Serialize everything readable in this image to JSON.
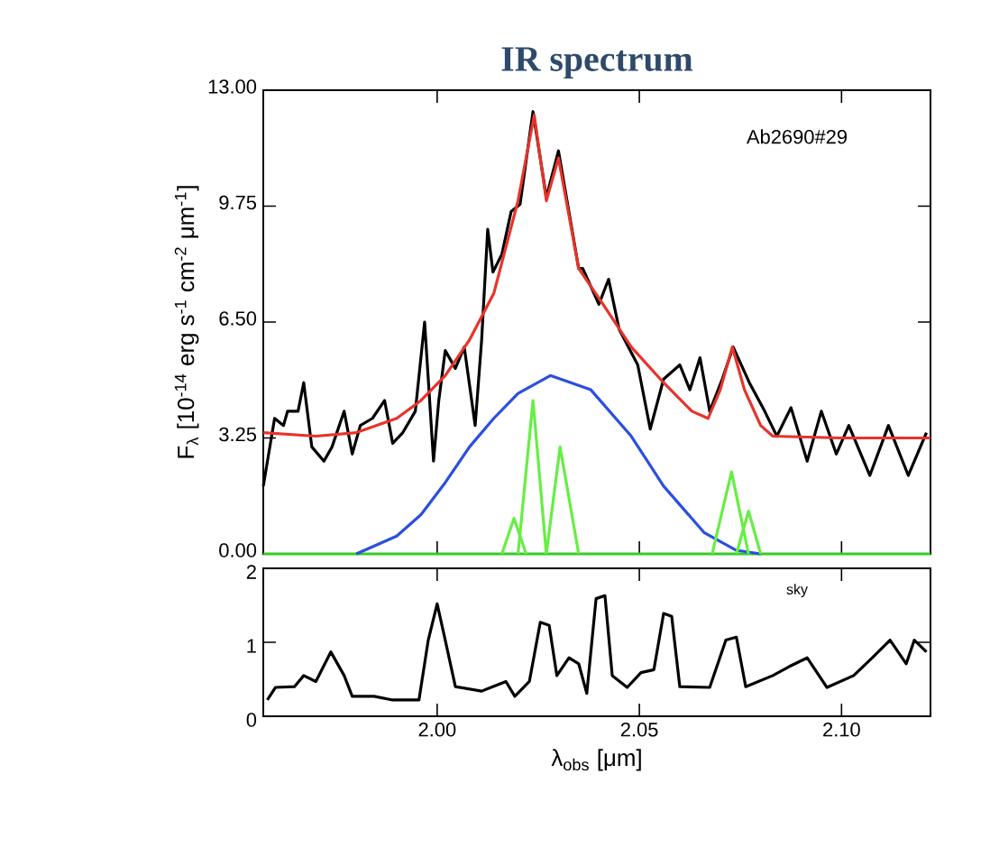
{
  "chart_data": [
    {
      "type": "line",
      "title": "IR spectrum",
      "ylabel": "F$_{λ}$ [10$^{-14}$ erg s$^{-1}$ cm$^{-2}$ μm$^{-1}$]",
      "xlim": [
        1.957,
        2.122
      ],
      "ylim": [
        0,
        13
      ],
      "yticks": [
        {
          "value": 0,
          "label": "0.00"
        },
        3.25,
        {
          "value": 6.5,
          "label": "6.50"
        },
        9.75,
        {
          "value": 13,
          "label": "13.00"
        }
      ],
      "tick_labels": "y",
      "annotations": [
        "Ab2690#29"
      ],
      "series": [
        {
          "color": "#33cc22",
          "x": [
            1.957,
            2.122
          ],
          "values": [
            0,
            0
          ]
        },
        {
          "color": "#000000",
          "x": [
            1.957,
            1.9598,
            1.962,
            1.963,
            1.9656,
            1.967,
            1.969,
            1.972,
            1.974,
            1.977,
            1.979,
            1.981,
            1.984,
            1.987,
            1.989,
            1.9915,
            1.9946,
            1.9969,
            1.9991,
            2.0004,
            2.002,
            2.0045,
            2.0067,
            2.0094,
            2.011,
            2.0125,
            2.0138,
            2.016,
            2.0183,
            2.0205,
            2.0237,
            2.027,
            2.03,
            2.035,
            2.036,
            2.04,
            2.0424,
            2.045,
            2.0496,
            2.0527,
            2.056,
            2.06,
            2.0625,
            2.065,
            2.0674,
            2.0705,
            2.0732,
            2.0772,
            2.081,
            2.084,
            2.0875,
            2.0915,
            2.095,
            2.0987,
            2.1018,
            2.107,
            2.1116,
            2.1165,
            2.121
          ],
          "values": [
            1.9,
            3.8,
            3.6,
            4.0,
            4.0,
            4.8,
            3.0,
            2.6,
            3.0,
            4.0,
            2.8,
            3.6,
            3.8,
            4.3,
            3.1,
            3.4,
            4.0,
            6.5,
            2.6,
            4.3,
            5.7,
            5.2,
            5.8,
            3.6,
            6.0,
            9.1,
            7.9,
            8.4,
            9.6,
            9.8,
            12.4,
            10.0,
            11.3,
            8.0,
            8.0,
            7.0,
            7.7,
            6.3,
            5.3,
            3.5,
            4.9,
            5.3,
            4.6,
            5.5,
            4.0,
            4.9,
            5.8,
            4.8,
            4.0,
            3.3,
            4.1,
            2.6,
            4.0,
            2.8,
            3.6,
            2.2,
            3.6,
            2.2,
            3.4
          ]
        },
        {
          "color": "#e8332a",
          "x": [
            1.957,
            1.97,
            1.98,
            1.99,
            1.996,
            2.002,
            2.008,
            2.014,
            2.02,
            2.024,
            2.027,
            2.03,
            2.035,
            2.041,
            2.048,
            2.056,
            2.063,
            2.067,
            2.07,
            2.073,
            2.076,
            2.08,
            2.083,
            2.1,
            2.122
          ],
          "values": [
            3.4,
            3.3,
            3.4,
            3.8,
            4.3,
            5.0,
            6.0,
            7.3,
            9.9,
            12.3,
            9.9,
            11.1,
            8.0,
            7.0,
            5.8,
            4.8,
            4.0,
            3.8,
            4.6,
            5.8,
            4.6,
            3.6,
            3.3,
            3.25,
            3.25
          ]
        },
        {
          "color": "#2a4fe0",
          "x": [
            1.98,
            1.99,
            1.996,
            2.002,
            2.008,
            2.014,
            2.02,
            2.028,
            2.038,
            2.048,
            2.056,
            2.066,
            2.074,
            2.08
          ],
          "values": [
            0,
            0.5,
            1.1,
            2.0,
            3.0,
            3.8,
            4.5,
            5.0,
            4.6,
            3.3,
            1.9,
            0.6,
            0.1,
            0
          ]
        },
        {
          "color": "#66ee44",
          "x": [
            2.016,
            2.019,
            2.022
          ],
          "values": [
            0,
            1.0,
            0
          ]
        },
        {
          "color": "#66ee44",
          "x": [
            2.02,
            2.0237,
            2.027
          ],
          "values": [
            0,
            4.3,
            0
          ]
        },
        {
          "color": "#66ee44",
          "x": [
            2.027,
            2.0304,
            2.035
          ],
          "values": [
            0,
            3.0,
            0
          ]
        },
        {
          "color": "#66ee44",
          "x": [
            2.068,
            2.0728,
            2.077
          ],
          "values": [
            0,
            2.3,
            0
          ]
        },
        {
          "color": "#66ee44",
          "x": [
            2.074,
            2.077,
            2.08
          ],
          "values": [
            0,
            1.2,
            0
          ]
        }
      ]
    },
    {
      "type": "line",
      "xlabel": "λ$_{obs}$ [μm]",
      "xlim": [
        1.957,
        2.122
      ],
      "ylim": [
        0,
        2
      ],
      "xticks": [
        {
          "value": 2.0,
          "label": "2.00"
        },
        2.05,
        {
          "value": 2.1,
          "label": "2.10"
        }
      ],
      "yticks": [
        0,
        1,
        2
      ],
      "annotations": [
        "sky"
      ],
      "series": [
        {
          "color": "#000000",
          "x": [
            1.958,
            1.96,
            1.9647,
            1.967,
            1.97,
            1.9737,
            1.977,
            1.979,
            1.9844,
            1.989,
            1.9955,
            1.9978,
            2.0,
            2.002,
            2.0045,
            2.011,
            2.017,
            2.0192,
            2.0228,
            2.0255,
            2.0277,
            2.0296,
            2.0326,
            2.035,
            2.037,
            2.0393,
            2.0415,
            2.0433,
            2.047,
            2.0504,
            2.0536,
            2.056,
            2.058,
            2.06,
            2.0674,
            2.0714,
            2.074,
            2.0763,
            2.083,
            2.087,
            2.0915,
            2.0964,
            2.103,
            2.1076,
            2.112,
            2.116,
            2.118,
            2.121
          ],
          "values": [
            0.22,
            0.39,
            0.4,
            0.55,
            0.47,
            0.87,
            0.55,
            0.27,
            0.27,
            0.22,
            0.22,
            1.03,
            1.52,
            1.03,
            0.4,
            0.34,
            0.47,
            0.27,
            0.47,
            1.27,
            1.23,
            0.55,
            0.79,
            0.71,
            0.31,
            1.59,
            1.63,
            0.55,
            0.39,
            0.59,
            0.63,
            1.39,
            1.35,
            0.4,
            0.39,
            1.03,
            1.07,
            0.4,
            0.55,
            0.67,
            0.79,
            0.39,
            0.55,
            0.79,
            1.03,
            0.71,
            1.03,
            0.87
          ]
        }
      ]
    }
  ]
}
